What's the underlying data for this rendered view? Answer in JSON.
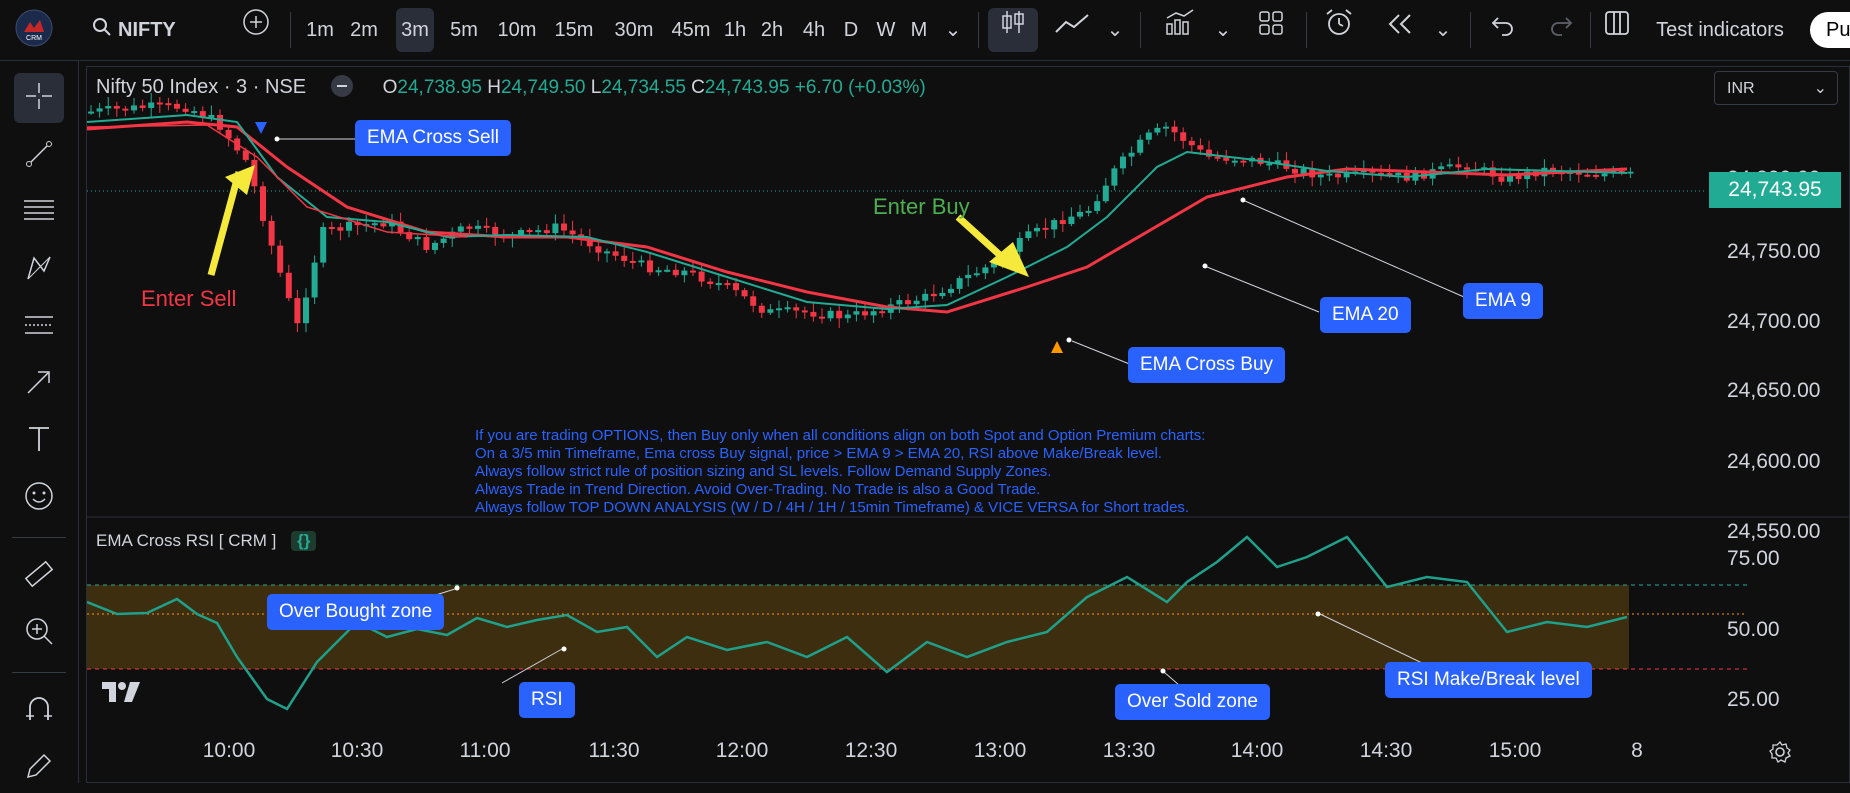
{
  "toolbar": {
    "symbol": "NIFTY",
    "intervals": [
      "1m",
      "2m",
      "3m",
      "5m",
      "10m",
      "15m",
      "30m",
      "45m",
      "1h",
      "2h",
      "4h",
      "D",
      "W",
      "M"
    ],
    "active_interval": "3m",
    "indicators_label": "Test indicators",
    "publish_label": "Pu"
  },
  "legend": {
    "title": "Nifty 50 Index · 3 · NSE",
    "o_label": "O",
    "o": "24,738.95",
    "h_label": "H",
    "h": "24,749.50",
    "l_label": "L",
    "l": "24,734.55",
    "c_label": "C",
    "c": "24,743.95",
    "change": "+6.70 (+0.03%)"
  },
  "currency": "INR",
  "last_price": "24,743.95",
  "price_axis": [
    "24,800.00",
    "24,750.00",
    "24,700.00",
    "24,650.00",
    "24,600.00",
    "24,550.00"
  ],
  "rsi_axis": [
    "75.00",
    "50.00",
    "25.00"
  ],
  "time_axis": [
    "10:00",
    "10:30",
    "11:00",
    "11:30",
    "12:00",
    "12:30",
    "13:00",
    "13:30",
    "14:00",
    "14:30",
    "15:00",
    "8"
  ],
  "indicator": {
    "title": "EMA Cross RSI [ CRM ]",
    "braces": "{}"
  },
  "annotations": {
    "ema_cross_sell": "EMA Cross Sell",
    "enter_sell": "Enter Sell",
    "enter_buy": "Enter Buy",
    "ema_cross_buy": "EMA Cross Buy",
    "ema20": "EMA 20",
    "ema9": "EMA 9",
    "over_bought": "Over Bought zone",
    "rsi": "RSI",
    "over_sold": "Over Sold zone",
    "make_break": "RSI Make/Break level"
  },
  "note_lines": [
    "If you are trading OPTIONS, then Buy only when all conditions align on both Spot and Option Premium charts:",
    "On a 3/5 min Timeframe, Ema cross Buy signal, price > EMA 9 > EMA 20, RSI above Make/Break level.",
    "Always follow strict rule of position sizing and SL levels. Follow Demand Supply Zones.",
    "Always Trade in Trend Direction. Avoid Over-Trading. No Trade is also a Good Trade.",
    "Always follow TOP DOWN ANALYSIS (W / D / 4H / 1H / 15min Timeframe) & VICE VERSA for Short trades."
  ],
  "colors": {
    "up": "#22ab94",
    "down": "#f23645",
    "ema20": "#f23645",
    "ema9": "#22ab94",
    "label": "#2962ff",
    "yellow": "#f5e93b",
    "rsi": "#1fa08a",
    "band": "#3d2e10"
  }
}
